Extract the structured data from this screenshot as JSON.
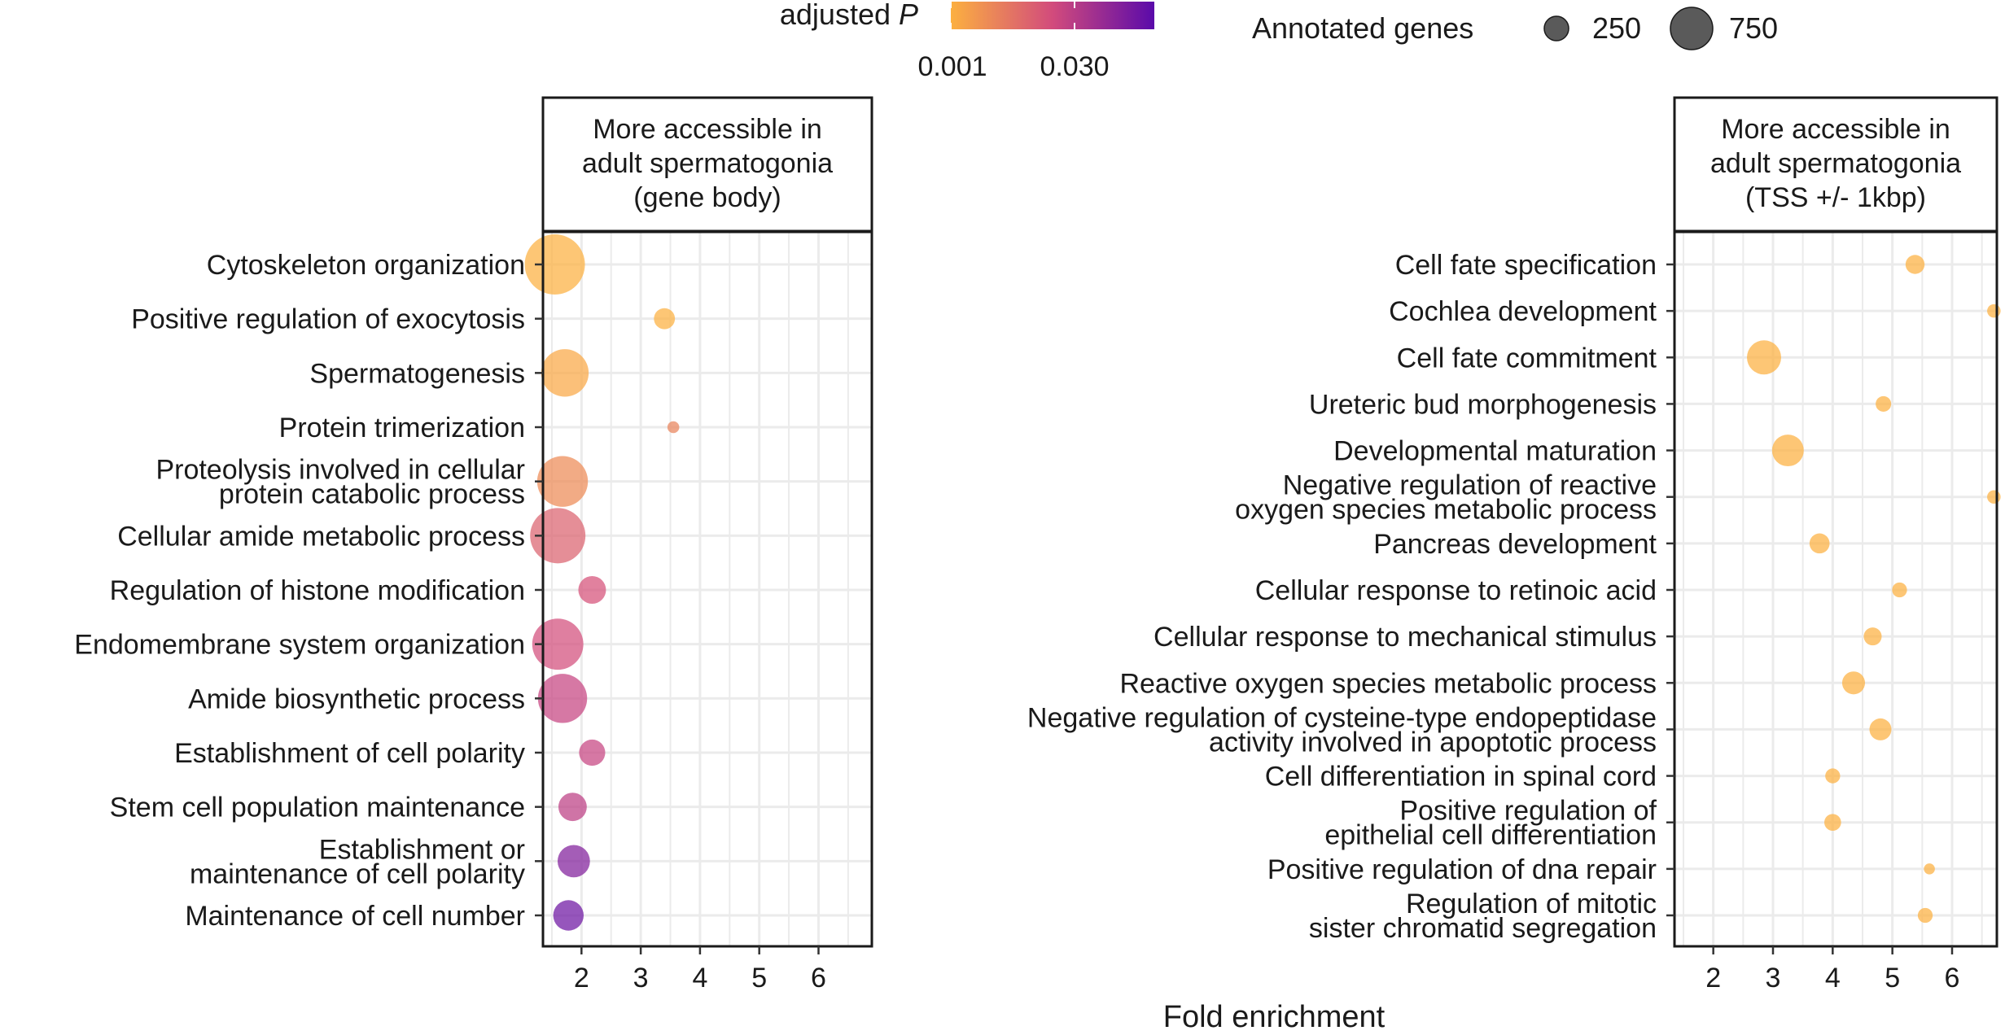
{
  "figure": {
    "xlabel": "Fold enrichment",
    "color_legend": {
      "title_prefix": "adjusted ",
      "title_italic": "P",
      "ticks": [
        "0.001",
        "0.030"
      ],
      "colors": [
        "#fcb040",
        "#d24b7c",
        "#5a0aaa"
      ]
    },
    "size_legend": {
      "title": "Annotated genes",
      "entries": [
        {
          "label": "250",
          "genes": 250
        },
        {
          "label": "750",
          "genes": 750
        }
      ]
    }
  },
  "chart_data": [
    {
      "type": "scatter",
      "panel_title": [
        "More accessible in",
        "adult spermatogonia",
        "(gene body)"
      ],
      "xlim": [
        1.35,
        6.9
      ],
      "xticks": [
        "2",
        "3",
        "4",
        "5",
        "6"
      ],
      "grid": true,
      "points": [
        {
          "label": [
            "Cytoskeleton organization"
          ],
          "x": 1.55,
          "genes": 900,
          "padj": 0.001
        },
        {
          "label": [
            "Positive regulation of exocytosis"
          ],
          "x": 3.4,
          "genes": 110,
          "padj": 0.001
        },
        {
          "label": [
            "Spermatogenesis"
          ],
          "x": 1.72,
          "genes": 560,
          "padj": 0.003
        },
        {
          "label": [
            "Protein trimerization"
          ],
          "x": 3.55,
          "genes": 35,
          "padj": 0.012
        },
        {
          "label": [
            "Proteolysis involved in cellular",
            "protein catabolic process"
          ],
          "x": 1.68,
          "genes": 640,
          "padj": 0.01
        },
        {
          "label": [
            "Cellular amide metabolic process"
          ],
          "x": 1.6,
          "genes": 760,
          "padj": 0.02
        },
        {
          "label": [
            "Regulation of histone modification"
          ],
          "x": 2.18,
          "genes": 190,
          "padj": 0.024
        },
        {
          "label": [
            "Endomembrane system organization"
          ],
          "x": 1.6,
          "genes": 650,
          "padj": 0.025
        },
        {
          "label": [
            "Amide biosynthetic process"
          ],
          "x": 1.68,
          "genes": 600,
          "padj": 0.028
        },
        {
          "label": [
            "Establishment of cell polarity"
          ],
          "x": 2.18,
          "genes": 170,
          "padj": 0.028
        },
        {
          "label": [
            "Stem cell population maintenance"
          ],
          "x": 1.85,
          "genes": 200,
          "padj": 0.03
        },
        {
          "label": [
            "Establishment or",
            "maintenance of cell polarity"
          ],
          "x": 1.87,
          "genes": 260,
          "padj": 0.042
        },
        {
          "label": [
            "Maintenance of cell number"
          ],
          "x": 1.78,
          "genes": 230,
          "padj": 0.046
        }
      ]
    },
    {
      "type": "scatter",
      "panel_title": [
        "More accessible in",
        "adult spermatogonia",
        "(TSS +/- 1kbp)"
      ],
      "xlim": [
        1.35,
        6.75
      ],
      "xticks": [
        "2",
        "3",
        "4",
        "5",
        "6"
      ],
      "grid": true,
      "points": [
        {
          "label": [
            "Cell fate specification"
          ],
          "x": 5.38,
          "genes": 90,
          "padj": 0.001
        },
        {
          "label": [
            "Cochlea development"
          ],
          "x": 6.7,
          "genes": 45,
          "padj": 0.001
        },
        {
          "label": [
            "Cell fate commitment"
          ],
          "x": 2.85,
          "genes": 290,
          "padj": 0.001
        },
        {
          "label": [
            "Ureteric bud morphogenesis"
          ],
          "x": 4.85,
          "genes": 60,
          "padj": 0.001
        },
        {
          "label": [
            "Developmental maturation"
          ],
          "x": 3.25,
          "genes": 250,
          "padj": 0.001
        },
        {
          "label": [
            "Negative regulation of reactive",
            "oxygen species metabolic process"
          ],
          "x": 6.7,
          "genes": 45,
          "padj": 0.001
        },
        {
          "label": [
            "Pancreas development"
          ],
          "x": 3.78,
          "genes": 100,
          "padj": 0.001
        },
        {
          "label": [
            "Cellular response to retinoic acid"
          ],
          "x": 5.12,
          "genes": 55,
          "padj": 0.001
        },
        {
          "label": [
            "Cellular response to mechanical stimulus"
          ],
          "x": 4.67,
          "genes": 80,
          "padj": 0.001
        },
        {
          "label": [
            "Reactive oxygen species metabolic process"
          ],
          "x": 4.35,
          "genes": 130,
          "padj": 0.001
        },
        {
          "label": [
            "Negative regulation of cysteine-type endopeptidase",
            "activity involved in apoptotic process"
          ],
          "x": 4.8,
          "genes": 120,
          "padj": 0.001
        },
        {
          "label": [
            "Cell differentiation in spinal cord"
          ],
          "x": 4.0,
          "genes": 55,
          "padj": 0.001
        },
        {
          "label": [
            "Positive regulation of",
            "epithelial cell differentiation"
          ],
          "x": 4.0,
          "genes": 70,
          "padj": 0.001
        },
        {
          "label": [
            "Positive regulation of dna repair"
          ],
          "x": 5.62,
          "genes": 30,
          "padj": 0.001
        },
        {
          "label": [
            "Regulation of mitotic",
            "sister chromatid segregation"
          ],
          "x": 5.55,
          "genes": 55,
          "padj": 0.001
        }
      ]
    }
  ]
}
